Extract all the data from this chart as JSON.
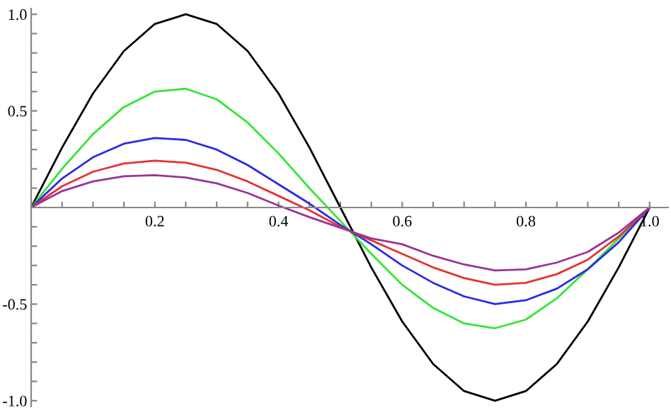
{
  "chart_data": {
    "type": "line",
    "x": [
      0,
      0.05,
      0.1,
      0.15,
      0.2,
      0.25,
      0.3,
      0.35,
      0.4,
      0.45,
      0.5,
      0.55,
      0.6,
      0.65,
      0.7,
      0.75,
      0.8,
      0.85,
      0.9,
      0.95,
      1.0
    ],
    "series": [
      {
        "color": "#000000",
        "values": [
          0,
          0.31,
          0.59,
          0.81,
          0.95,
          1.0,
          0.95,
          0.81,
          0.59,
          0.31,
          0,
          -0.31,
          -0.59,
          -0.81,
          -0.95,
          -1.0,
          -0.95,
          -0.81,
          -0.59,
          -0.31,
          0
        ]
      },
      {
        "color": "#33e633",
        "values": [
          0,
          0.2,
          0.38,
          0.52,
          0.6,
          0.615,
          0.56,
          0.44,
          0.28,
          0.1,
          -0.07,
          -0.24,
          -0.4,
          -0.52,
          -0.6,
          -0.625,
          -0.58,
          -0.47,
          -0.32,
          -0.16,
          0
        ]
      },
      {
        "color": "#2a2ae6",
        "values": [
          0,
          0.15,
          0.26,
          0.33,
          0.36,
          0.35,
          0.3,
          0.22,
          0.12,
          0.02,
          -0.09,
          -0.19,
          -0.3,
          -0.39,
          -0.46,
          -0.5,
          -0.48,
          -0.42,
          -0.32,
          -0.18,
          0
        ]
      },
      {
        "color": "#e63333",
        "values": [
          0,
          0.11,
          0.185,
          0.228,
          0.242,
          0.232,
          0.195,
          0.135,
          0.06,
          -0.015,
          -0.1,
          -0.17,
          -0.24,
          -0.31,
          -0.365,
          -0.4,
          -0.39,
          -0.345,
          -0.27,
          -0.15,
          0
        ]
      },
      {
        "color": "#993399",
        "values": [
          0,
          0.085,
          0.135,
          0.162,
          0.167,
          0.155,
          0.125,
          0.075,
          0.01,
          -0.05,
          -0.105,
          -0.16,
          -0.19,
          -0.25,
          -0.295,
          -0.326,
          -0.32,
          -0.285,
          -0.23,
          -0.13,
          0
        ]
      }
    ],
    "xlim": [
      0,
      1.03
    ],
    "ylim": [
      -1.03,
      1.03
    ],
    "xticks": [
      {
        "value": 0.05,
        "label": null
      },
      {
        "value": 0.1,
        "label": null
      },
      {
        "value": 0.15,
        "label": null
      },
      0.2,
      {
        "value": 0.25,
        "label": null
      },
      {
        "value": 0.3,
        "label": null
      },
      {
        "value": 0.35,
        "label": null
      },
      0.4,
      {
        "value": 0.45,
        "label": null
      },
      {
        "value": 0.5,
        "label": null
      },
      {
        "value": 0.55,
        "label": null
      },
      0.6,
      {
        "value": 0.65,
        "label": null
      },
      {
        "value": 0.7,
        "label": null
      },
      {
        "value": 0.75,
        "label": null
      },
      0.8,
      {
        "value": 0.85,
        "label": null
      },
      {
        "value": 0.9,
        "label": null
      },
      {
        "value": 0.95,
        "label": null
      },
      {
        "value": 1,
        "label": "1.0"
      }
    ],
    "yticks": [
      {
        "value": -1,
        "label": "-1.0"
      },
      {
        "value": -0.9,
        "label": null
      },
      {
        "value": -0.8,
        "label": null
      },
      {
        "value": -0.7,
        "label": null
      },
      {
        "value": -0.6,
        "label": null
      },
      -0.5,
      {
        "value": -0.4,
        "label": null
      },
      {
        "value": -0.3,
        "label": null
      },
      {
        "value": -0.2,
        "label": null
      },
      {
        "value": -0.1,
        "label": null
      },
      {
        "value": 0.1,
        "label": null
      },
      {
        "value": 0.2,
        "label": null
      },
      {
        "value": 0.3,
        "label": null
      },
      {
        "value": 0.4,
        "label": null
      },
      0.5,
      {
        "value": 0.6,
        "label": null
      },
      {
        "value": 0.7,
        "label": null
      },
      {
        "value": 0.8,
        "label": null
      },
      {
        "value": 0.9,
        "label": null
      },
      {
        "value": 1,
        "label": "1.0"
      }
    ],
    "grid": false,
    "legend": false,
    "marker": "none",
    "line_style": "solid"
  }
}
